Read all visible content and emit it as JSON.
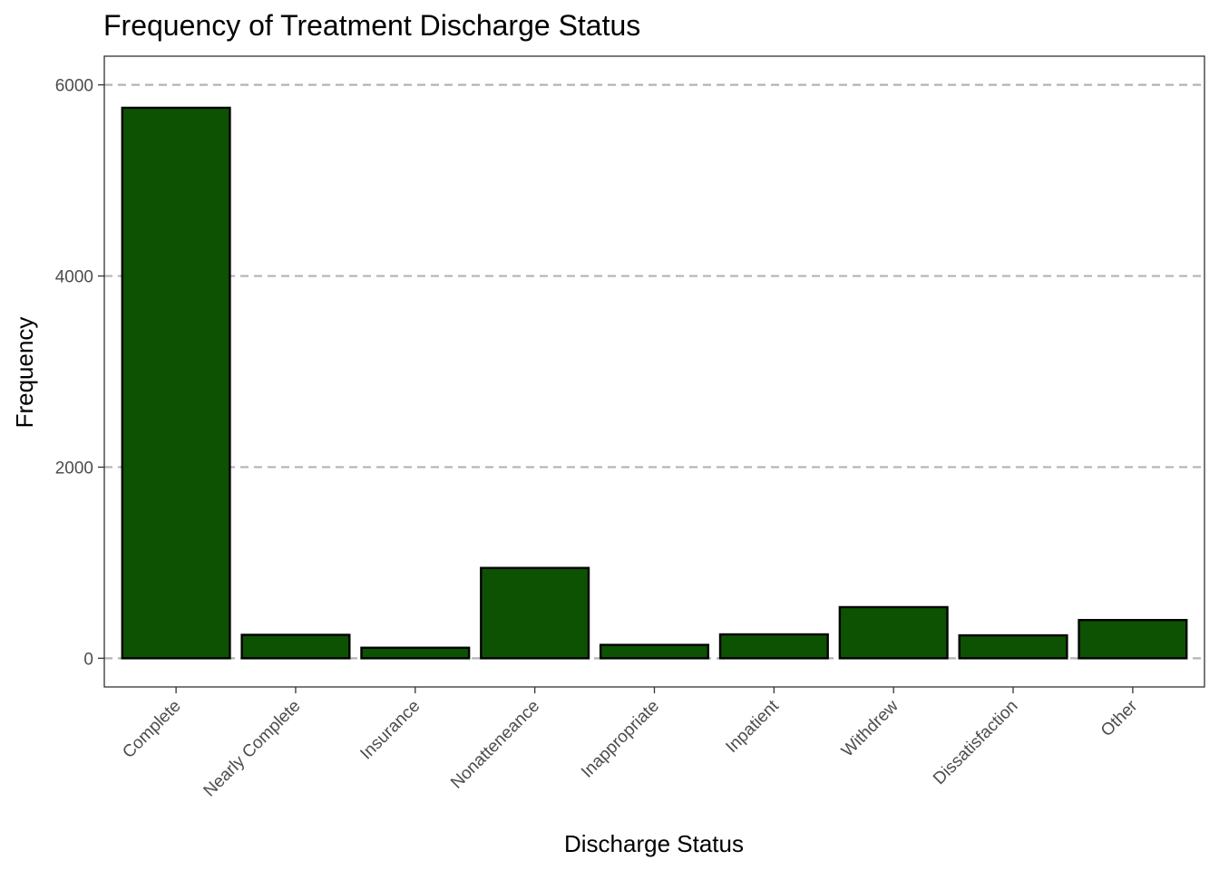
{
  "chart_data": {
    "type": "bar",
    "title": "Frequency of Treatment Discharge Status",
    "xlabel": "Discharge Status",
    "ylabel": "Frequency",
    "categories": [
      "Complete",
      "Nearly Complete",
      "Insurance",
      "Nonatteneance",
      "Inappropriate",
      "Inpatient",
      "Withdrew",
      "Dissatisfaction",
      "Other"
    ],
    "values": [
      5760,
      245,
      110,
      945,
      140,
      250,
      535,
      240,
      400
    ],
    "ylim": [
      -300,
      6300
    ],
    "yticks": [
      0,
      2000,
      4000,
      6000
    ],
    "ytick_labels": [
      "0",
      "2000",
      "4000",
      "6000"
    ],
    "grid": "dashed horizontal gridlines at major y ticks",
    "legend": "none",
    "colors": {
      "bar_fill": "#0d5202",
      "bar_stroke": "#000000",
      "grid": "#b3b3b3",
      "panel_border": "#333333"
    }
  }
}
